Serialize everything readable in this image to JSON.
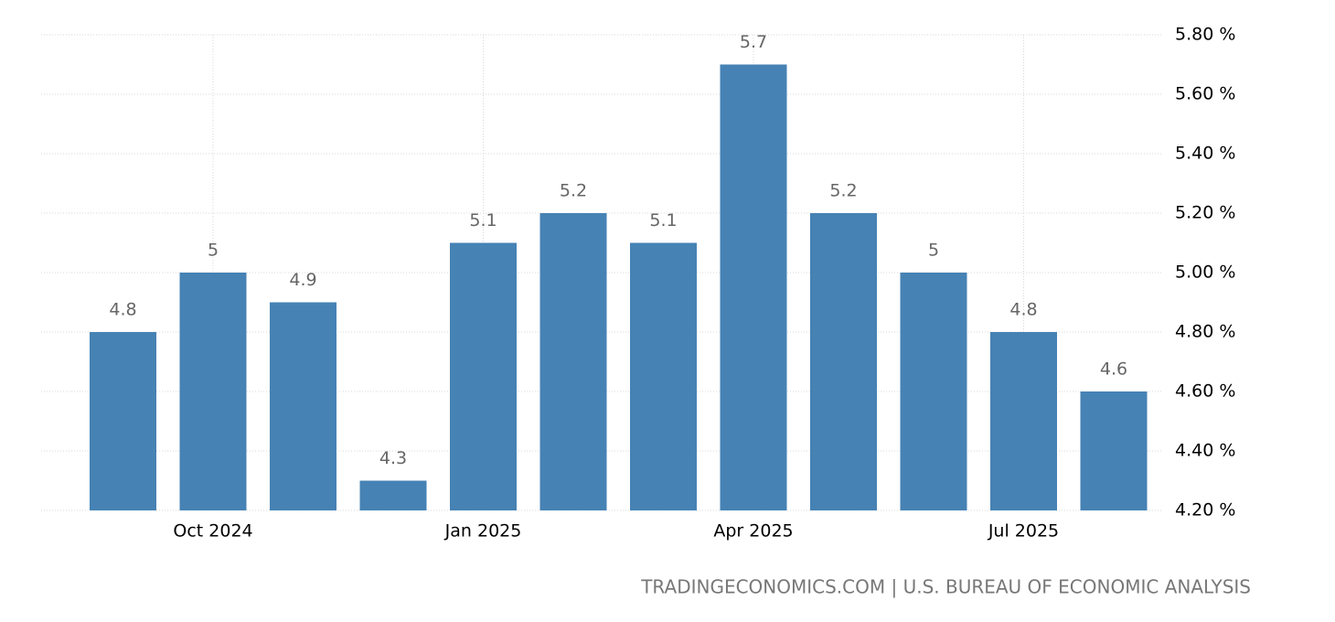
{
  "chart_data": {
    "type": "bar",
    "categories": [
      null,
      "Oct 2024",
      null,
      null,
      "Jan 2025",
      null,
      null,
      "Apr 2025",
      null,
      null,
      "Jul 2025",
      null
    ],
    "values": [
      4.8,
      5,
      4.9,
      4.3,
      5.1,
      5.2,
      5.1,
      5.7,
      5.2,
      5,
      4.8,
      4.6
    ],
    "color": "#4682b4",
    "ylim": [
      4.2,
      5.8
    ],
    "yticks": [
      {
        "value": 4.2,
        "label": "4.20 %"
      },
      {
        "value": 4.4,
        "label": "4.40 %"
      },
      {
        "value": 4.6,
        "label": "4.60 %"
      },
      {
        "value": 4.8,
        "label": "4.80 %"
      },
      {
        "value": 5.0,
        "label": "5.00 %"
      },
      {
        "value": 5.2,
        "label": "5.20 %"
      },
      {
        "value": 5.4,
        "label": "5.40 %"
      },
      {
        "value": 5.6,
        "label": "5.60 %"
      },
      {
        "value": 5.8,
        "label": "5.80 %"
      }
    ],
    "grid": true,
    "source": "TRADINGECONOMICS.COM | U.S. BUREAU OF ECONOMIC ANALYSIS"
  }
}
